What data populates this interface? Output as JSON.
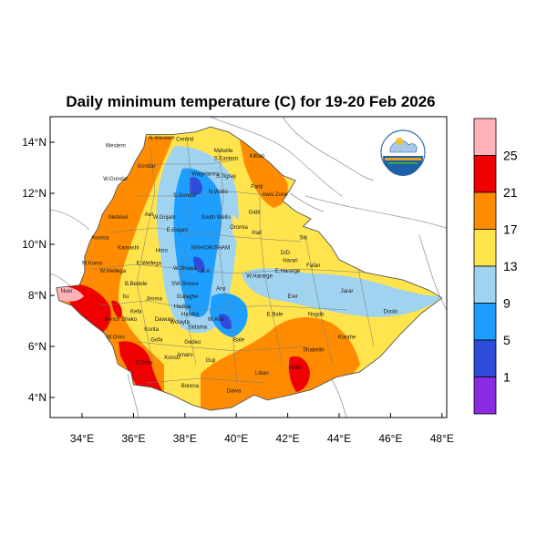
{
  "title": "Daily minimum temperature (C) for 19-20 Feb 2026",
  "axes": {
    "lat_ticks": [
      "14°N",
      "12°N",
      "10°N",
      "8°N",
      "6°N",
      "4°N"
    ],
    "lon_ticks": [
      "34°E",
      "36°E",
      "38°E",
      "40°E",
      "42°E",
      "44°E",
      "46°E",
      "48°E"
    ]
  },
  "legend": {
    "bins": [
      {
        "label": "25",
        "color": "#ffb3b8"
      },
      {
        "label": "21",
        "color": "#ee0000"
      },
      {
        "label": "17",
        "color": "#ff8c00"
      },
      {
        "label": "13",
        "color": "#ffe44d"
      },
      {
        "label": "9",
        "color": "#9fd3f0"
      },
      {
        "label": "5",
        "color": "#1e9fff"
      },
      {
        "label": "1",
        "color": "#2f4bdc"
      },
      {
        "label": "",
        "color": "#8a2be2"
      }
    ]
  },
  "logo": {
    "name": "ethiopian-meteorology-institute-logo"
  },
  "regions": [
    {
      "name": "Western",
      "lon": 35.3,
      "lat": 13.8
    },
    {
      "name": "N.Western",
      "lon": 37.1,
      "lat": 14.1
    },
    {
      "name": "Central",
      "lon": 38.0,
      "lat": 14.05
    },
    {
      "name": "Mekelle",
      "lon": 39.5,
      "lat": 13.6
    },
    {
      "name": "S.Eastern",
      "lon": 39.6,
      "lat": 13.3
    },
    {
      "name": "Gondar",
      "lon": 36.5,
      "lat": 13.0
    },
    {
      "name": "WagHamra",
      "lon": 38.8,
      "lat": 12.7
    },
    {
      "name": "S.Tigray",
      "lon": 39.6,
      "lat": 12.6
    },
    {
      "name": "Kilbati",
      "lon": 40.8,
      "lat": 13.4
    },
    {
      "name": "W.Gondar",
      "lon": 35.3,
      "lat": 12.5
    },
    {
      "name": "S.Gondar",
      "lon": 38.0,
      "lat": 11.85
    },
    {
      "name": "N.Wello",
      "lon": 39.3,
      "lat": 12.0
    },
    {
      "name": "Fanti",
      "lon": 40.8,
      "lat": 12.2
    },
    {
      "name": "Awsi Zone",
      "lon": 41.5,
      "lat": 11.9
    },
    {
      "name": "Metekel",
      "lon": 35.4,
      "lat": 11.0
    },
    {
      "name": "Awi",
      "lon": 36.6,
      "lat": 11.1
    },
    {
      "name": "W.Gojam",
      "lon": 37.2,
      "lat": 11.0
    },
    {
      "name": "South Wello",
      "lon": 39.2,
      "lat": 11.0
    },
    {
      "name": "Oromia",
      "lon": 40.1,
      "lat": 10.6
    },
    {
      "name": "Gabi",
      "lon": 40.7,
      "lat": 11.2
    },
    {
      "name": "E.Gojam",
      "lon": 37.7,
      "lat": 10.5
    },
    {
      "name": "Hari",
      "lon": 40.8,
      "lat": 10.4
    },
    {
      "name": "Siti",
      "lon": 42.6,
      "lat": 10.2
    },
    {
      "name": "Assosa",
      "lon": 34.7,
      "lat": 10.2
    },
    {
      "name": "Kamashi",
      "lon": 35.8,
      "lat": 9.8
    },
    {
      "name": "Horo",
      "lon": 37.1,
      "lat": 9.7
    },
    {
      "name": "NSH/OR/SHAM",
      "lon": 39.0,
      "lat": 9.8
    },
    {
      "name": "D/D",
      "lon": 41.9,
      "lat": 9.6
    },
    {
      "name": "Harari",
      "lon": 42.1,
      "lat": 9.3
    },
    {
      "name": "Fafan",
      "lon": 43.0,
      "lat": 9.1
    },
    {
      "name": "M.Komo",
      "lon": 34.4,
      "lat": 9.2
    },
    {
      "name": "W.Wellega",
      "lon": 35.2,
      "lat": 8.9
    },
    {
      "name": "E.Wellega",
      "lon": 36.6,
      "lat": 9.2
    },
    {
      "name": "W.Shewa",
      "lon": 38.0,
      "lat": 9.0
    },
    {
      "name": "A.A",
      "lon": 38.8,
      "lat": 8.9
    },
    {
      "name": "W.Hararge",
      "lon": 40.9,
      "lat": 8.7
    },
    {
      "name": "E.Hararge",
      "lon": 42.0,
      "lat": 8.9
    },
    {
      "name": "B.Bedele",
      "lon": 36.1,
      "lat": 8.4
    },
    {
      "name": "SW.Shewa",
      "lon": 38.0,
      "lat": 8.4
    },
    {
      "name": "Arsi",
      "lon": 39.4,
      "lat": 8.2
    },
    {
      "name": "Jarar",
      "lon": 44.3,
      "lat": 8.1
    },
    {
      "name": "Nuer",
      "lon": 33.4,
      "lat": 8.1
    },
    {
      "name": "Ilu",
      "lon": 35.7,
      "lat": 7.9
    },
    {
      "name": "Jimma",
      "lon": 36.8,
      "lat": 7.8
    },
    {
      "name": "Guraghe",
      "lon": 38.1,
      "lat": 7.9
    },
    {
      "name": "Erer",
      "lon": 42.2,
      "lat": 7.9
    },
    {
      "name": "Hadiya",
      "lon": 37.9,
      "lat": 7.5
    },
    {
      "name": "Halaba",
      "lon": 38.2,
      "lat": 7.2
    },
    {
      "name": "Kefa",
      "lon": 36.1,
      "lat": 7.3
    },
    {
      "name": "Bench Sheko",
      "lon": 35.5,
      "lat": 7.0
    },
    {
      "name": "Dawuro",
      "lon": 37.2,
      "lat": 7.0
    },
    {
      "name": "Wolayta",
      "lon": 37.8,
      "lat": 6.9
    },
    {
      "name": "Sidama",
      "lon": 38.5,
      "lat": 6.7
    },
    {
      "name": "W.Arsi",
      "lon": 39.2,
      "lat": 7.0
    },
    {
      "name": "E.Bale",
      "lon": 41.5,
      "lat": 7.2
    },
    {
      "name": "Nogob",
      "lon": 43.1,
      "lat": 7.2
    },
    {
      "name": "Doolo",
      "lon": 46.0,
      "lat": 7.3
    },
    {
      "name": "Konta",
      "lon": 36.7,
      "lat": 6.6
    },
    {
      "name": "Bale",
      "lon": 40.1,
      "lat": 6.2
    },
    {
      "name": "Korahe",
      "lon": 44.3,
      "lat": 6.3
    },
    {
      "name": "W.Omo",
      "lon": 35.3,
      "lat": 6.3
    },
    {
      "name": "Gofa",
      "lon": 36.9,
      "lat": 6.2
    },
    {
      "name": "Gedeo",
      "lon": 38.3,
      "lat": 6.1
    },
    {
      "name": "Shabelle",
      "lon": 43.0,
      "lat": 5.8
    },
    {
      "name": "Konso",
      "lon": 37.5,
      "lat": 5.5
    },
    {
      "name": "Amaro",
      "lon": 38.0,
      "lat": 5.6
    },
    {
      "name": "Guji",
      "lon": 39.0,
      "lat": 5.4
    },
    {
      "name": "S.Omo",
      "lon": 36.4,
      "lat": 5.3
    },
    {
      "name": "Liban",
      "lon": 41.0,
      "lat": 4.9
    },
    {
      "name": "Afder",
      "lon": 42.3,
      "lat": 5.1
    },
    {
      "name": "Borena",
      "lon": 38.2,
      "lat": 4.4
    },
    {
      "name": "Dawa",
      "lon": 39.9,
      "lat": 4.2
    }
  ]
}
